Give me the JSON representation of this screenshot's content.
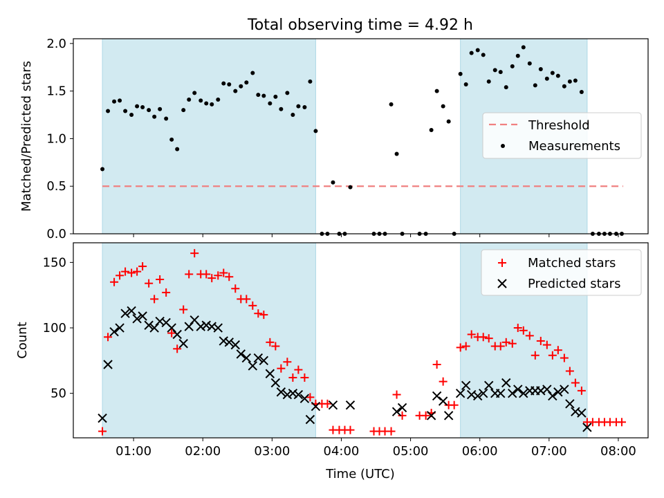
{
  "figure": {
    "title": "Total observing time = 4.92 h",
    "xlabel": "Time (UTC)",
    "xticks": [
      "01:00",
      "02:00",
      "03:00",
      "04:00",
      "05:00",
      "06:00",
      "07:00",
      "08:00"
    ],
    "colors": {
      "shade": "#add8e6",
      "threshold": "#f08080",
      "measurements": "#000000",
      "matched": "#ff0000",
      "predicted": "#000000"
    }
  },
  "chart_data": [
    {
      "type": "scatter",
      "panel": "top",
      "xlabel": "",
      "ylabel": "Matched/Predicted stars",
      "xlim": [
        0.13,
        8.43
      ],
      "ylim": [
        0,
        2.05
      ],
      "yticks": [
        0.0,
        0.5,
        1.0,
        1.5,
        2.0
      ],
      "legend": {
        "placement": "center-right",
        "entries": [
          "Threshold",
          "Measurements"
        ]
      },
      "shaded_intervals": [
        [
          0.55,
          3.63
        ],
        [
          5.72,
          7.55
        ]
      ],
      "threshold": {
        "name": "Threshold",
        "y": 0.5,
        "x": [
          0.55,
          8.07
        ]
      },
      "series": [
        {
          "name": "Measurements",
          "x": [
            0.55,
            0.63,
            0.72,
            0.8,
            0.88,
            0.97,
            1.05,
            1.13,
            1.22,
            1.3,
            1.38,
            1.47,
            1.55,
            1.63,
            1.72,
            1.8,
            1.88,
            1.97,
            2.05,
            2.13,
            2.22,
            2.3,
            2.38,
            2.47,
            2.55,
            2.63,
            2.72,
            2.8,
            2.88,
            2.97,
            3.05,
            3.13,
            3.22,
            3.3,
            3.38,
            3.47,
            3.55,
            3.63,
            3.72,
            3.8,
            3.88,
            3.97,
            4.05,
            4.13,
            4.47,
            4.55,
            4.63,
            4.72,
            4.8,
            4.88,
            5.13,
            5.22,
            5.3,
            5.38,
            5.47,
            5.55,
            5.63,
            5.72,
            5.8,
            5.88,
            5.97,
            6.05,
            6.13,
            6.22,
            6.3,
            6.38,
            6.47,
            6.55,
            6.63,
            6.72,
            6.8,
            6.88,
            6.97,
            7.05,
            7.13,
            7.22,
            7.3,
            7.38,
            7.47,
            7.55,
            7.63,
            7.72,
            7.8,
            7.88,
            7.97,
            8.05
          ],
          "y": [
            0.68,
            1.29,
            1.39,
            1.4,
            1.29,
            1.25,
            1.34,
            1.33,
            1.3,
            1.23,
            1.31,
            1.21,
            0.99,
            0.89,
            1.3,
            1.41,
            1.48,
            1.4,
            1.37,
            1.36,
            1.41,
            1.58,
            1.57,
            1.5,
            1.55,
            1.59,
            1.69,
            1.46,
            1.45,
            1.37,
            1.44,
            1.31,
            1.48,
            1.25,
            1.34,
            1.33,
            1.6,
            1.08,
            0.0,
            0.0,
            0.54,
            0.0,
            0.0,
            0.49,
            0.0,
            0.0,
            0.0,
            1.36,
            0.84,
            0.0,
            0.0,
            0.0,
            1.09,
            1.5,
            1.34,
            1.18,
            0.0,
            1.68,
            1.57,
            1.9,
            1.93,
            1.88,
            1.6,
            1.72,
            1.7,
            1.54,
            1.76,
            1.87,
            1.96,
            1.79,
            1.56,
            1.73,
            1.63,
            1.69,
            1.66,
            1.55,
            1.6,
            1.61,
            1.49,
            1.16,
            0.0,
            0.0,
            0.0,
            0.0,
            0.0,
            0.0
          ]
        }
      ]
    },
    {
      "type": "scatter",
      "panel": "bottom",
      "xlabel": "Time (UTC)",
      "ylabel": "Count",
      "xlim": [
        0.13,
        8.43
      ],
      "ylim": [
        16,
        165
      ],
      "yticks": [
        50,
        100,
        150
      ],
      "legend": {
        "placement": "top-right",
        "entries": [
          "Matched stars",
          "Predicted stars"
        ]
      },
      "shaded_intervals": [
        [
          0.55,
          3.63
        ],
        [
          5.72,
          7.55
        ]
      ],
      "series": [
        {
          "name": "Matched stars",
          "marker": "+",
          "x": [
            0.55,
            0.63,
            0.72,
            0.8,
            0.88,
            0.97,
            1.05,
            1.13,
            1.22,
            1.3,
            1.38,
            1.47,
            1.55,
            1.63,
            1.72,
            1.8,
            1.88,
            1.97,
            2.05,
            2.13,
            2.22,
            2.3,
            2.38,
            2.47,
            2.55,
            2.63,
            2.72,
            2.8,
            2.88,
            2.97,
            3.05,
            3.13,
            3.22,
            3.3,
            3.38,
            3.47,
            3.55,
            3.63,
            3.72,
            3.8,
            3.88,
            3.97,
            4.05,
            4.13,
            4.47,
            4.55,
            4.63,
            4.72,
            4.8,
            4.88,
            5.13,
            5.22,
            5.3,
            5.38,
            5.47,
            5.55,
            5.63,
            5.72,
            5.8,
            5.88,
            5.97,
            6.05,
            6.13,
            6.22,
            6.3,
            6.38,
            6.47,
            6.55,
            6.63,
            6.72,
            6.8,
            6.88,
            6.97,
            7.05,
            7.13,
            7.22,
            7.3,
            7.38,
            7.47,
            7.55,
            7.63,
            7.72,
            7.8,
            7.88,
            7.97,
            8.05
          ],
          "y": [
            21,
            93,
            135,
            140,
            143,
            142,
            143,
            147,
            134,
            122,
            137,
            127,
            96,
            84,
            114,
            141,
            157,
            141,
            141,
            138,
            140,
            142,
            139,
            130,
            122,
            122,
            117,
            111,
            110,
            89,
            86,
            69,
            74,
            62,
            68,
            62,
            47,
            42,
            42,
            42,
            22,
            22,
            22,
            22,
            21,
            21,
            21,
            21,
            49,
            33,
            33,
            33,
            35,
            72,
            59,
            41,
            41,
            85,
            86,
            95,
            93,
            93,
            92,
            86,
            86,
            89,
            88,
            100,
            98,
            94,
            79,
            90,
            87,
            79,
            83,
            77,
            67,
            58,
            52,
            28,
            28,
            28,
            28,
            28,
            28,
            28
          ]
        },
        {
          "name": "Predicted stars",
          "marker": "x",
          "x": [
            0.55,
            0.63,
            0.72,
            0.8,
            0.88,
            0.97,
            1.05,
            1.13,
            1.22,
            1.3,
            1.38,
            1.47,
            1.55,
            1.63,
            1.72,
            1.8,
            1.88,
            1.97,
            2.05,
            2.13,
            2.22,
            2.3,
            2.38,
            2.47,
            2.55,
            2.63,
            2.72,
            2.8,
            2.88,
            2.97,
            3.05,
            3.13,
            3.22,
            3.3,
            3.38,
            3.47,
            3.55,
            3.63,
            3.88,
            4.13,
            4.8,
            4.88,
            5.3,
            5.38,
            5.47,
            5.55,
            5.72,
            5.8,
            5.88,
            5.97,
            6.05,
            6.13,
            6.22,
            6.3,
            6.38,
            6.47,
            6.55,
            6.63,
            6.72,
            6.8,
            6.88,
            6.97,
            7.05,
            7.13,
            7.22,
            7.3,
            7.38,
            7.47,
            7.55
          ],
          "y": [
            31,
            72,
            97,
            100,
            111,
            113,
            107,
            109,
            102,
            100,
            105,
            104,
            100,
            95,
            88,
            101,
            106,
            101,
            102,
            101,
            100,
            90,
            89,
            87,
            80,
            77,
            71,
            77,
            75,
            65,
            58,
            51,
            49,
            50,
            49,
            46,
            30,
            40,
            41,
            41,
            36,
            39,
            33,
            48,
            44,
            33,
            50,
            56,
            49,
            48,
            50,
            56,
            50,
            50,
            58,
            50,
            53,
            50,
            52,
            52,
            52,
            53,
            48,
            51,
            53,
            42,
            36,
            35,
            24
          ]
        }
      ]
    }
  ]
}
